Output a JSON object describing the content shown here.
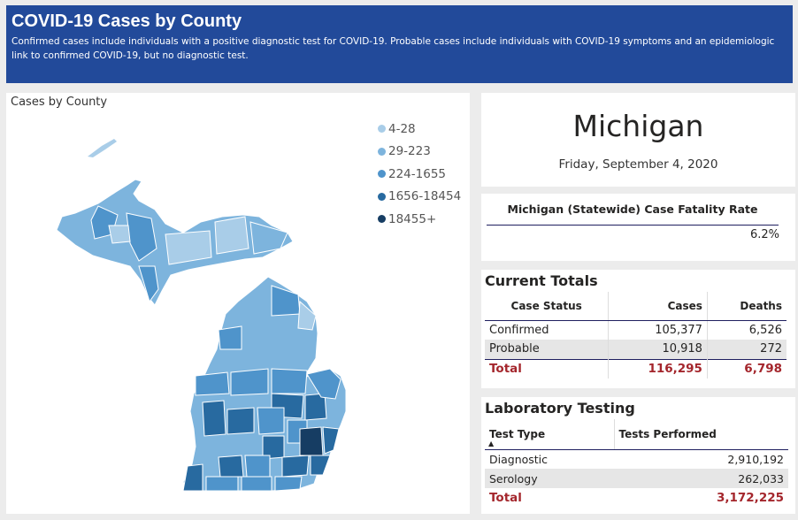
{
  "banner": {
    "title": "COVID-19 Cases by County",
    "subtitle": "Confirmed cases include individuals with a positive diagnostic test for COVID-19. Probable cases include individuals with COVID-19 symptoms and an epidemiologic link to confirmed COVID-19, but no diagnostic test."
  },
  "map": {
    "title": "Cases by County",
    "legend": [
      {
        "label": "4-28",
        "color": "#a9cde8"
      },
      {
        "label": "29-223",
        "color": "#7db4dd"
      },
      {
        "label": "224-1655",
        "color": "#4f94cb"
      },
      {
        "label": "1656-18454",
        "color": "#286aa0"
      },
      {
        "label": "18455+",
        "color": "#163d63"
      }
    ]
  },
  "state": {
    "name": "Michigan",
    "date": "Friday, September 4, 2020"
  },
  "cfr": {
    "label": "Michigan (Statewide) Case Fatality Rate",
    "value": "6.2%"
  },
  "totals": {
    "title": "Current Totals",
    "headers": [
      "Case Status",
      "Cases",
      "Deaths"
    ],
    "rows": [
      [
        "Confirmed",
        "105,377",
        "6,526"
      ],
      [
        "Probable",
        "10,918",
        "272"
      ]
    ],
    "total": [
      "Total",
      "116,295",
      "6,798"
    ]
  },
  "lab": {
    "title": "Laboratory Testing",
    "headers": [
      "Test Type",
      "Tests Performed"
    ],
    "sort_indicator": "▲",
    "rows": [
      [
        "Diagnostic",
        "2,910,192"
      ],
      [
        "Serology",
        "262,033"
      ]
    ],
    "total": [
      "Total",
      "3,172,225"
    ]
  }
}
